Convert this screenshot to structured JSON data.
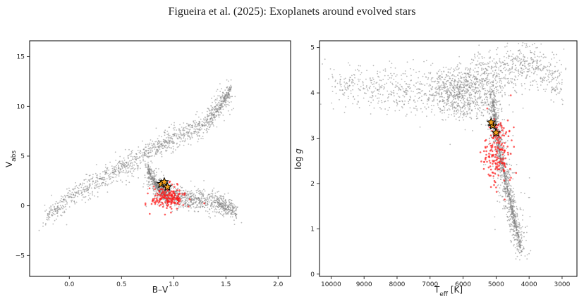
{
  "page_title": "Figueira et al. (2025): Exoplanets around evolved stars",
  "colors": {
    "field": "#808080",
    "hosts": "#ff1a1a",
    "star_fill": "#f4a11d",
    "star_edge": "#000000"
  },
  "chart_data": [
    {
      "type": "scatter",
      "panel": "left",
      "title": "",
      "xlabel": "B–V",
      "ylabel_main": "V",
      "ylabel_sub": "abs",
      "xlim": [
        -0.38,
        2.12
      ],
      "ylim": [
        16.6,
        -7.1
      ],
      "y_inverted": true,
      "x_ticks": [
        0.0,
        0.5,
        1.0,
        1.5,
        2.0
      ],
      "x_tick_labels": [
        "0.0",
        "0.5",
        "1.0",
        "1.5",
        "2.0"
      ],
      "y_ticks": [
        -5,
        0,
        5,
        10,
        15
      ],
      "y_tick_labels": [
        "−5",
        "0",
        "5",
        "10",
        "15"
      ],
      "series": [
        {
          "role": "field",
          "shape": "main_sequence",
          "path": [
            [
              -0.22,
              -1.2
            ],
            [
              0.0,
              0.8
            ],
            [
              0.2,
              2.0
            ],
            [
              0.45,
              3.4
            ],
            [
              0.65,
              4.8
            ],
            [
              0.85,
              6.0
            ],
            [
              1.0,
              6.9
            ],
            [
              1.2,
              7.6
            ],
            [
              1.35,
              8.8
            ],
            [
              1.45,
              10.0
            ],
            [
              1.55,
              11.8
            ]
          ],
          "spread": 0.55
        },
        {
          "role": "field",
          "shape": "giant_branch",
          "path": [
            [
              0.75,
              3.6
            ],
            [
              0.85,
              1.8
            ],
            [
              0.95,
              0.9
            ],
            [
              1.15,
              0.7
            ],
            [
              1.4,
              0.4
            ],
            [
              1.6,
              -0.6
            ]
          ],
          "spread": 0.5
        },
        {
          "role": "hosts",
          "shape": "red_clump",
          "center": [
            0.95,
            0.8
          ],
          "spread": [
            0.08,
            0.6
          ]
        },
        {
          "role": "highlighted_stars",
          "points": [
            [
              0.88,
              2.2
            ],
            [
              0.94,
              1.9
            ],
            [
              0.91,
              2.4
            ]
          ]
        }
      ]
    },
    {
      "type": "scatter",
      "panel": "right",
      "title": "",
      "xlabel_main": "T",
      "xlabel_sub": "eff",
      "xlabel_unit": " [K]",
      "ylabel": "log g",
      "xlim": [
        10350,
        2550
      ],
      "ylim": [
        5.15,
        -0.05
      ],
      "x_inverted": true,
      "y_inverted": true,
      "x_ticks": [
        10000,
        9000,
        8000,
        7000,
        6000,
        5000,
        4000,
        3000
      ],
      "x_tick_labels": [
        "10000",
        "9000",
        "8000",
        "7000",
        "6000",
        "5000",
        "4000",
        "3000"
      ],
      "y_ticks": [
        0,
        1,
        2,
        3,
        4,
        5
      ],
      "y_tick_labels": [
        "0",
        "1",
        "2",
        "3",
        "4",
        "5"
      ],
      "series": [
        {
          "role": "field",
          "shape": "main_sequence",
          "path": [
            [
              10000,
              4.15
            ],
            [
              9000,
              4.15
            ],
            [
              8000,
              4.05
            ],
            [
              7000,
              4.05
            ],
            [
              6500,
              4.1
            ],
            [
              6000,
              4.2
            ],
            [
              5500,
              4.35
            ],
            [
              5000,
              4.5
            ],
            [
              4500,
              4.6
            ],
            [
              4000,
              4.65
            ],
            [
              3500,
              4.5
            ],
            [
              3000,
              4.2
            ]
          ],
          "spread": 0.25
        },
        {
          "role": "field",
          "shape": "subgiants",
          "center": [
            5900,
            3.9
          ],
          "spread": [
            550,
            0.25
          ]
        },
        {
          "role": "field",
          "shape": "giant_branch",
          "path": [
            [
              5100,
              3.9
            ],
            [
              5000,
              3.2
            ],
            [
              4850,
              2.5
            ],
            [
              4650,
              1.9
            ],
            [
              4450,
              1.2
            ],
            [
              4250,
              0.6
            ]
          ],
          "spread": 0.18
        },
        {
          "role": "hosts",
          "shape": "red_giants",
          "center": [
            4950,
            2.7
          ],
          "spread": [
            200,
            0.35
          ]
        },
        {
          "role": "highlighted_stars",
          "points": [
            [
              5100,
              3.28
            ],
            [
              5000,
              3.12
            ],
            [
              5150,
              3.35
            ]
          ]
        }
      ]
    }
  ]
}
